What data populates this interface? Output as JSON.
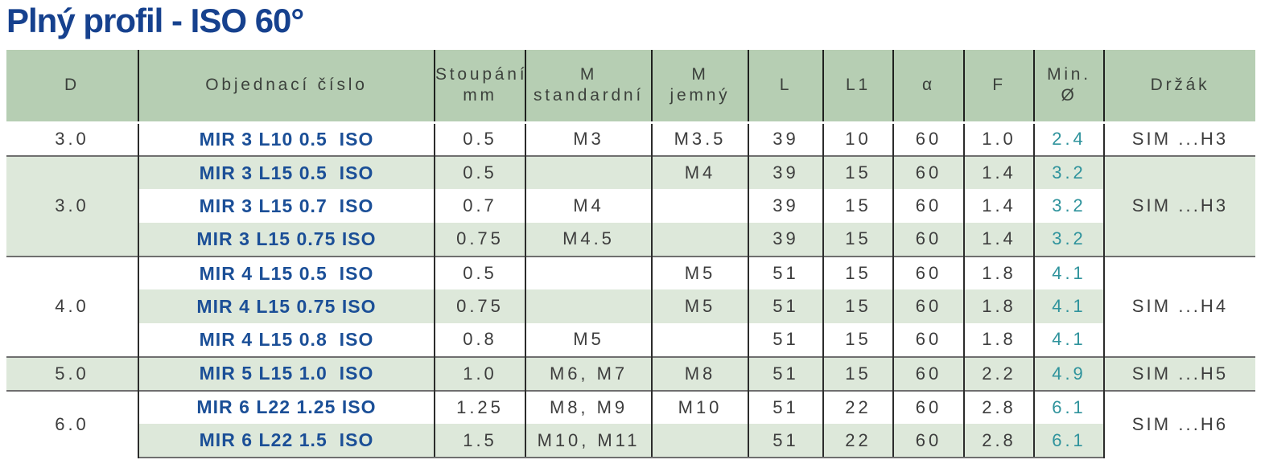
{
  "page": {
    "title": "Plný profil - ISO 60°"
  },
  "colors": {
    "title_blue": "#16418e",
    "order_number_blue": "#1b4f97",
    "min_diameter_teal": "#2f939c",
    "header_green": "#b6ceb3",
    "row_shade_green": "#dde8da",
    "group_line_gray": "#6f6f6f"
  },
  "table": {
    "headers": [
      {
        "id": "d",
        "line1": "D"
      },
      {
        "id": "order",
        "line1": "Objednací číslo"
      },
      {
        "id": "pitch",
        "line1": "Stoupání",
        "line2": "mm"
      },
      {
        "id": "m_std",
        "line1": "M",
        "line2": "standardní"
      },
      {
        "id": "m_fine",
        "line1": "M",
        "line2": "jemný"
      },
      {
        "id": "l",
        "line1": "L"
      },
      {
        "id": "l1",
        "line1": "L1"
      },
      {
        "id": "alpha",
        "line1": "α"
      },
      {
        "id": "f",
        "line1": "F"
      },
      {
        "id": "min_dia",
        "line1": "Min.",
        "line2": "Ø"
      },
      {
        "id": "holder",
        "line1": "Držák"
      }
    ],
    "groups": [
      {
        "d": "3.0",
        "holder": "SIM ...H3",
        "rows": [
          {
            "order": "MIR 3 L10 0.5  ISO",
            "pitch": "0.5",
            "m_std": "M3",
            "m_fine": "M3.5",
            "l": "39",
            "l1": "10",
            "alpha": "60",
            "f": "1.0",
            "min": "2.4",
            "shade": false
          }
        ]
      },
      {
        "d": "3.0",
        "holder": "SIM ...H3",
        "rows": [
          {
            "order": "MIR 3 L15 0.5  ISO",
            "pitch": "0.5",
            "m_std": "",
            "m_fine": "M4",
            "l": "39",
            "l1": "15",
            "alpha": "60",
            "f": "1.4",
            "min": "3.2",
            "shade": true
          },
          {
            "order": "MIR 3 L15 0.7  ISO",
            "pitch": "0.7",
            "m_std": "M4",
            "m_fine": "",
            "l": "39",
            "l1": "15",
            "alpha": "60",
            "f": "1.4",
            "min": "3.2",
            "shade": false
          },
          {
            "order": "MIR 3 L15 0.75 ISO",
            "pitch": "0.75",
            "m_std": "M4.5",
            "m_fine": "",
            "l": "39",
            "l1": "15",
            "alpha": "60",
            "f": "1.4",
            "min": "3.2",
            "shade": true
          }
        ]
      },
      {
        "d": "4.0",
        "holder": "SIM ...H4",
        "rows": [
          {
            "order": "MIR 4 L15 0.5  ISO",
            "pitch": "0.5",
            "m_std": "",
            "m_fine": "M5",
            "l": "51",
            "l1": "15",
            "alpha": "60",
            "f": "1.8",
            "min": "4.1",
            "shade": false
          },
          {
            "order": "MIR 4 L15 0.75 ISO",
            "pitch": "0.75",
            "m_std": "",
            "m_fine": "M5",
            "l": "51",
            "l1": "15",
            "alpha": "60",
            "f": "1.8",
            "min": "4.1",
            "shade": true
          },
          {
            "order": "MIR 4 L15 0.8  ISO",
            "pitch": "0.8",
            "m_std": "M5",
            "m_fine": "",
            "l": "51",
            "l1": "15",
            "alpha": "60",
            "f": "1.8",
            "min": "4.1",
            "shade": false
          }
        ]
      },
      {
        "d": "5.0",
        "holder": "SIM ...H5",
        "rows": [
          {
            "order": "MIR 5 L15 1.0  ISO",
            "pitch": "1.0",
            "m_std": "M6, M7",
            "m_fine": "M8",
            "l": "51",
            "l1": "15",
            "alpha": "60",
            "f": "2.2",
            "min": "4.9",
            "shade": true
          }
        ]
      },
      {
        "d": "6.0",
        "holder": "SIM ...H6",
        "rows": [
          {
            "order": "MIR 6 L22 1.25 ISO",
            "pitch": "1.25",
            "m_std": "M8, M9",
            "m_fine": "M10",
            "l": "51",
            "l1": "22",
            "alpha": "60",
            "f": "2.8",
            "min": "6.1",
            "shade": false
          },
          {
            "order": "MIR 6 L22 1.5  ISO",
            "pitch": "1.5",
            "m_std": "M10, M11",
            "m_fine": "",
            "l": "51",
            "l1": "22",
            "alpha": "60",
            "f": "2.8",
            "min": "6.1",
            "shade": true
          }
        ]
      }
    ]
  }
}
